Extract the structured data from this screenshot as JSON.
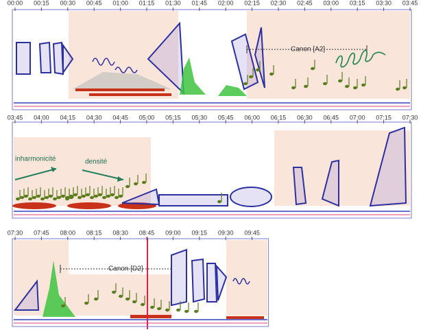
{
  "panels": [
    {
      "times": [
        "00:00",
        "00:15",
        "00:30",
        "00:45",
        "01:00",
        "01:15",
        "01:30",
        "01:45",
        "02:00",
        "02:15",
        "02:30",
        "02:45",
        "03:00",
        "03:15",
        "03:30",
        "03:45"
      ],
      "annotations": [
        "Canon [A2]"
      ]
    },
    {
      "times": [
        "03:45",
        "04:00",
        "04:15",
        "04:30",
        "04:45",
        "05:00",
        "05:15",
        "05:30",
        "05:45",
        "06:00",
        "06:15",
        "06:30",
        "06:45",
        "07:00",
        "07:15",
        "07:30"
      ],
      "annotations": [
        "inharmonicité",
        "densité"
      ]
    },
    {
      "times": [
        "07:30",
        "07:45",
        "08:00",
        "08:15",
        "08:30",
        "08:45",
        "09:00",
        "09:15",
        "09:30",
        "09:45"
      ],
      "annotations": [
        "Canon [D2]"
      ]
    }
  ]
}
